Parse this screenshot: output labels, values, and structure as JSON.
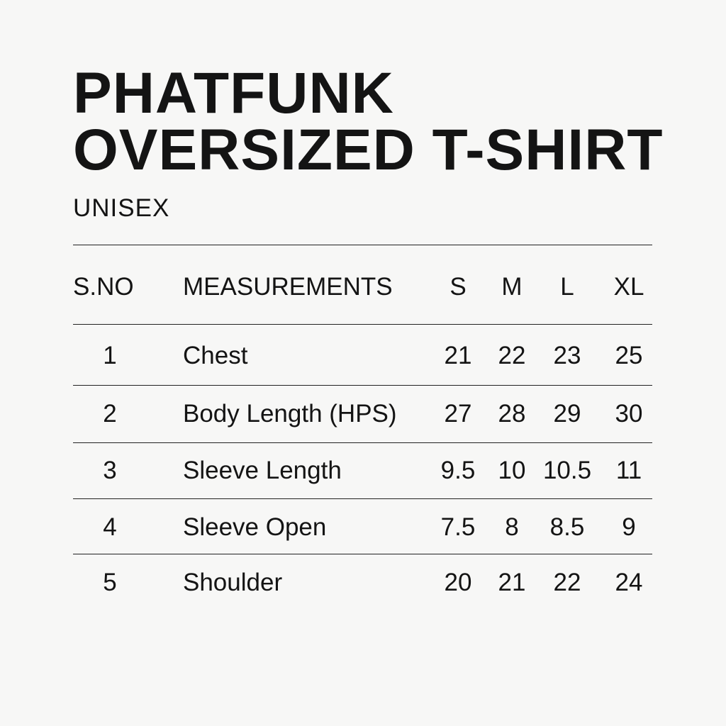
{
  "title_lines": [
    "PHATFUNK",
    "OVERSIZED T-SHIRT"
  ],
  "subtitle": "UNISEX",
  "table": {
    "headers": [
      "S.NO",
      "MEASUREMENTS",
      "S",
      "M",
      "L",
      "XL"
    ],
    "rows": [
      [
        "1",
        "Chest",
        "21",
        "22",
        "23",
        "25"
      ],
      [
        "2",
        "Body Length (HPS)",
        "27",
        "28",
        "29",
        "30"
      ],
      [
        "3",
        "Sleeve Length",
        "9.5",
        "10",
        "10.5",
        "11"
      ],
      [
        "4",
        "Sleeve Open",
        "7.5",
        "8",
        "8.5",
        "9"
      ],
      [
        "5",
        "Shoulder",
        "20",
        "21",
        "22",
        "24"
      ]
    ]
  }
}
